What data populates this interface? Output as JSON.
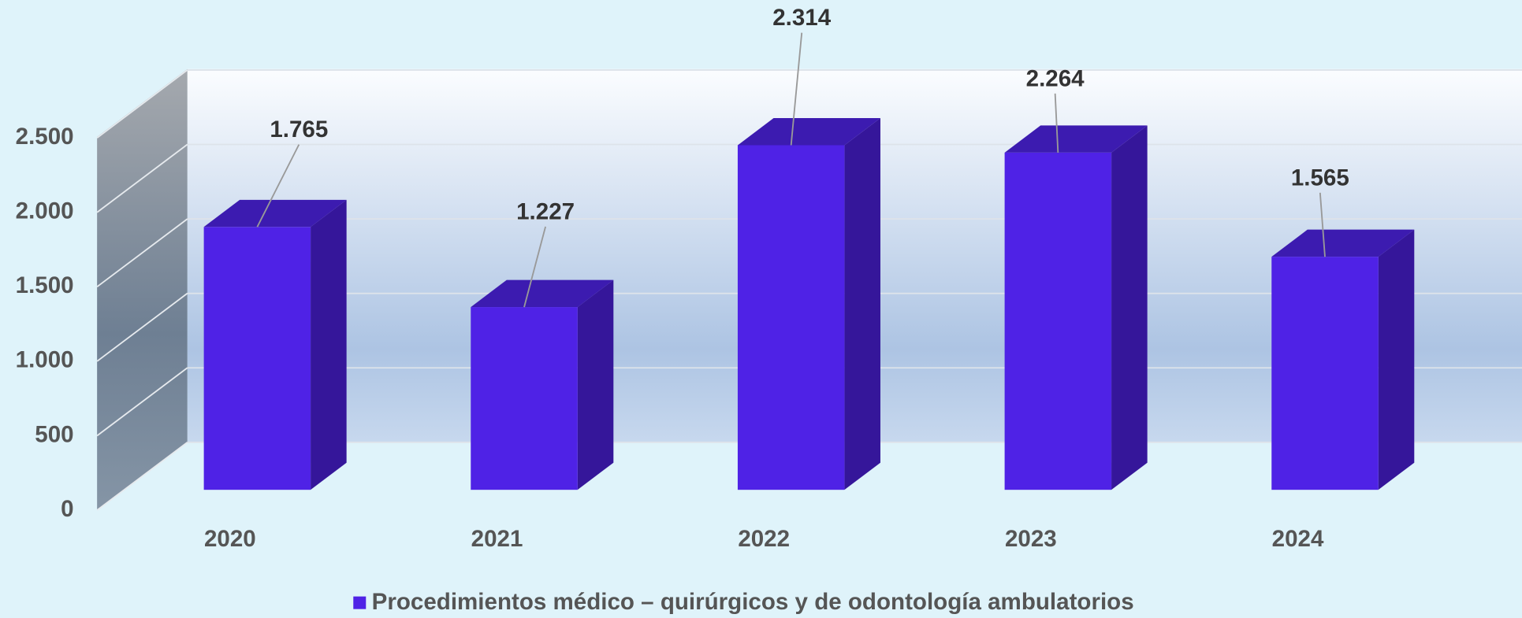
{
  "chart_data": {
    "type": "bar3d",
    "categories": [
      "2020",
      "2021",
      "2022",
      "2023",
      "2024"
    ],
    "series": [
      {
        "name": "Procedimientos médico – quirúrgicos y de odontología ambulatorios",
        "color": "#4f22e6",
        "values": [
          1765,
          1227,
          2314,
          2264,
          1565
        ],
        "value_labels": [
          "1.765",
          "1.227",
          "2.314",
          "2.264",
          "1.565"
        ]
      }
    ],
    "ylim": [
      0,
      2500
    ],
    "yticks": [
      0,
      500,
      {
        "value": 1000,
        "label": "1.000"
      },
      {
        "value": 1500,
        "label": "1.500"
      },
      {
        "value": 2000,
        "label": "2.000"
      },
      {
        "value": 2500,
        "label": "2.500"
      }
    ],
    "grid": true,
    "legend": "bottom"
  }
}
